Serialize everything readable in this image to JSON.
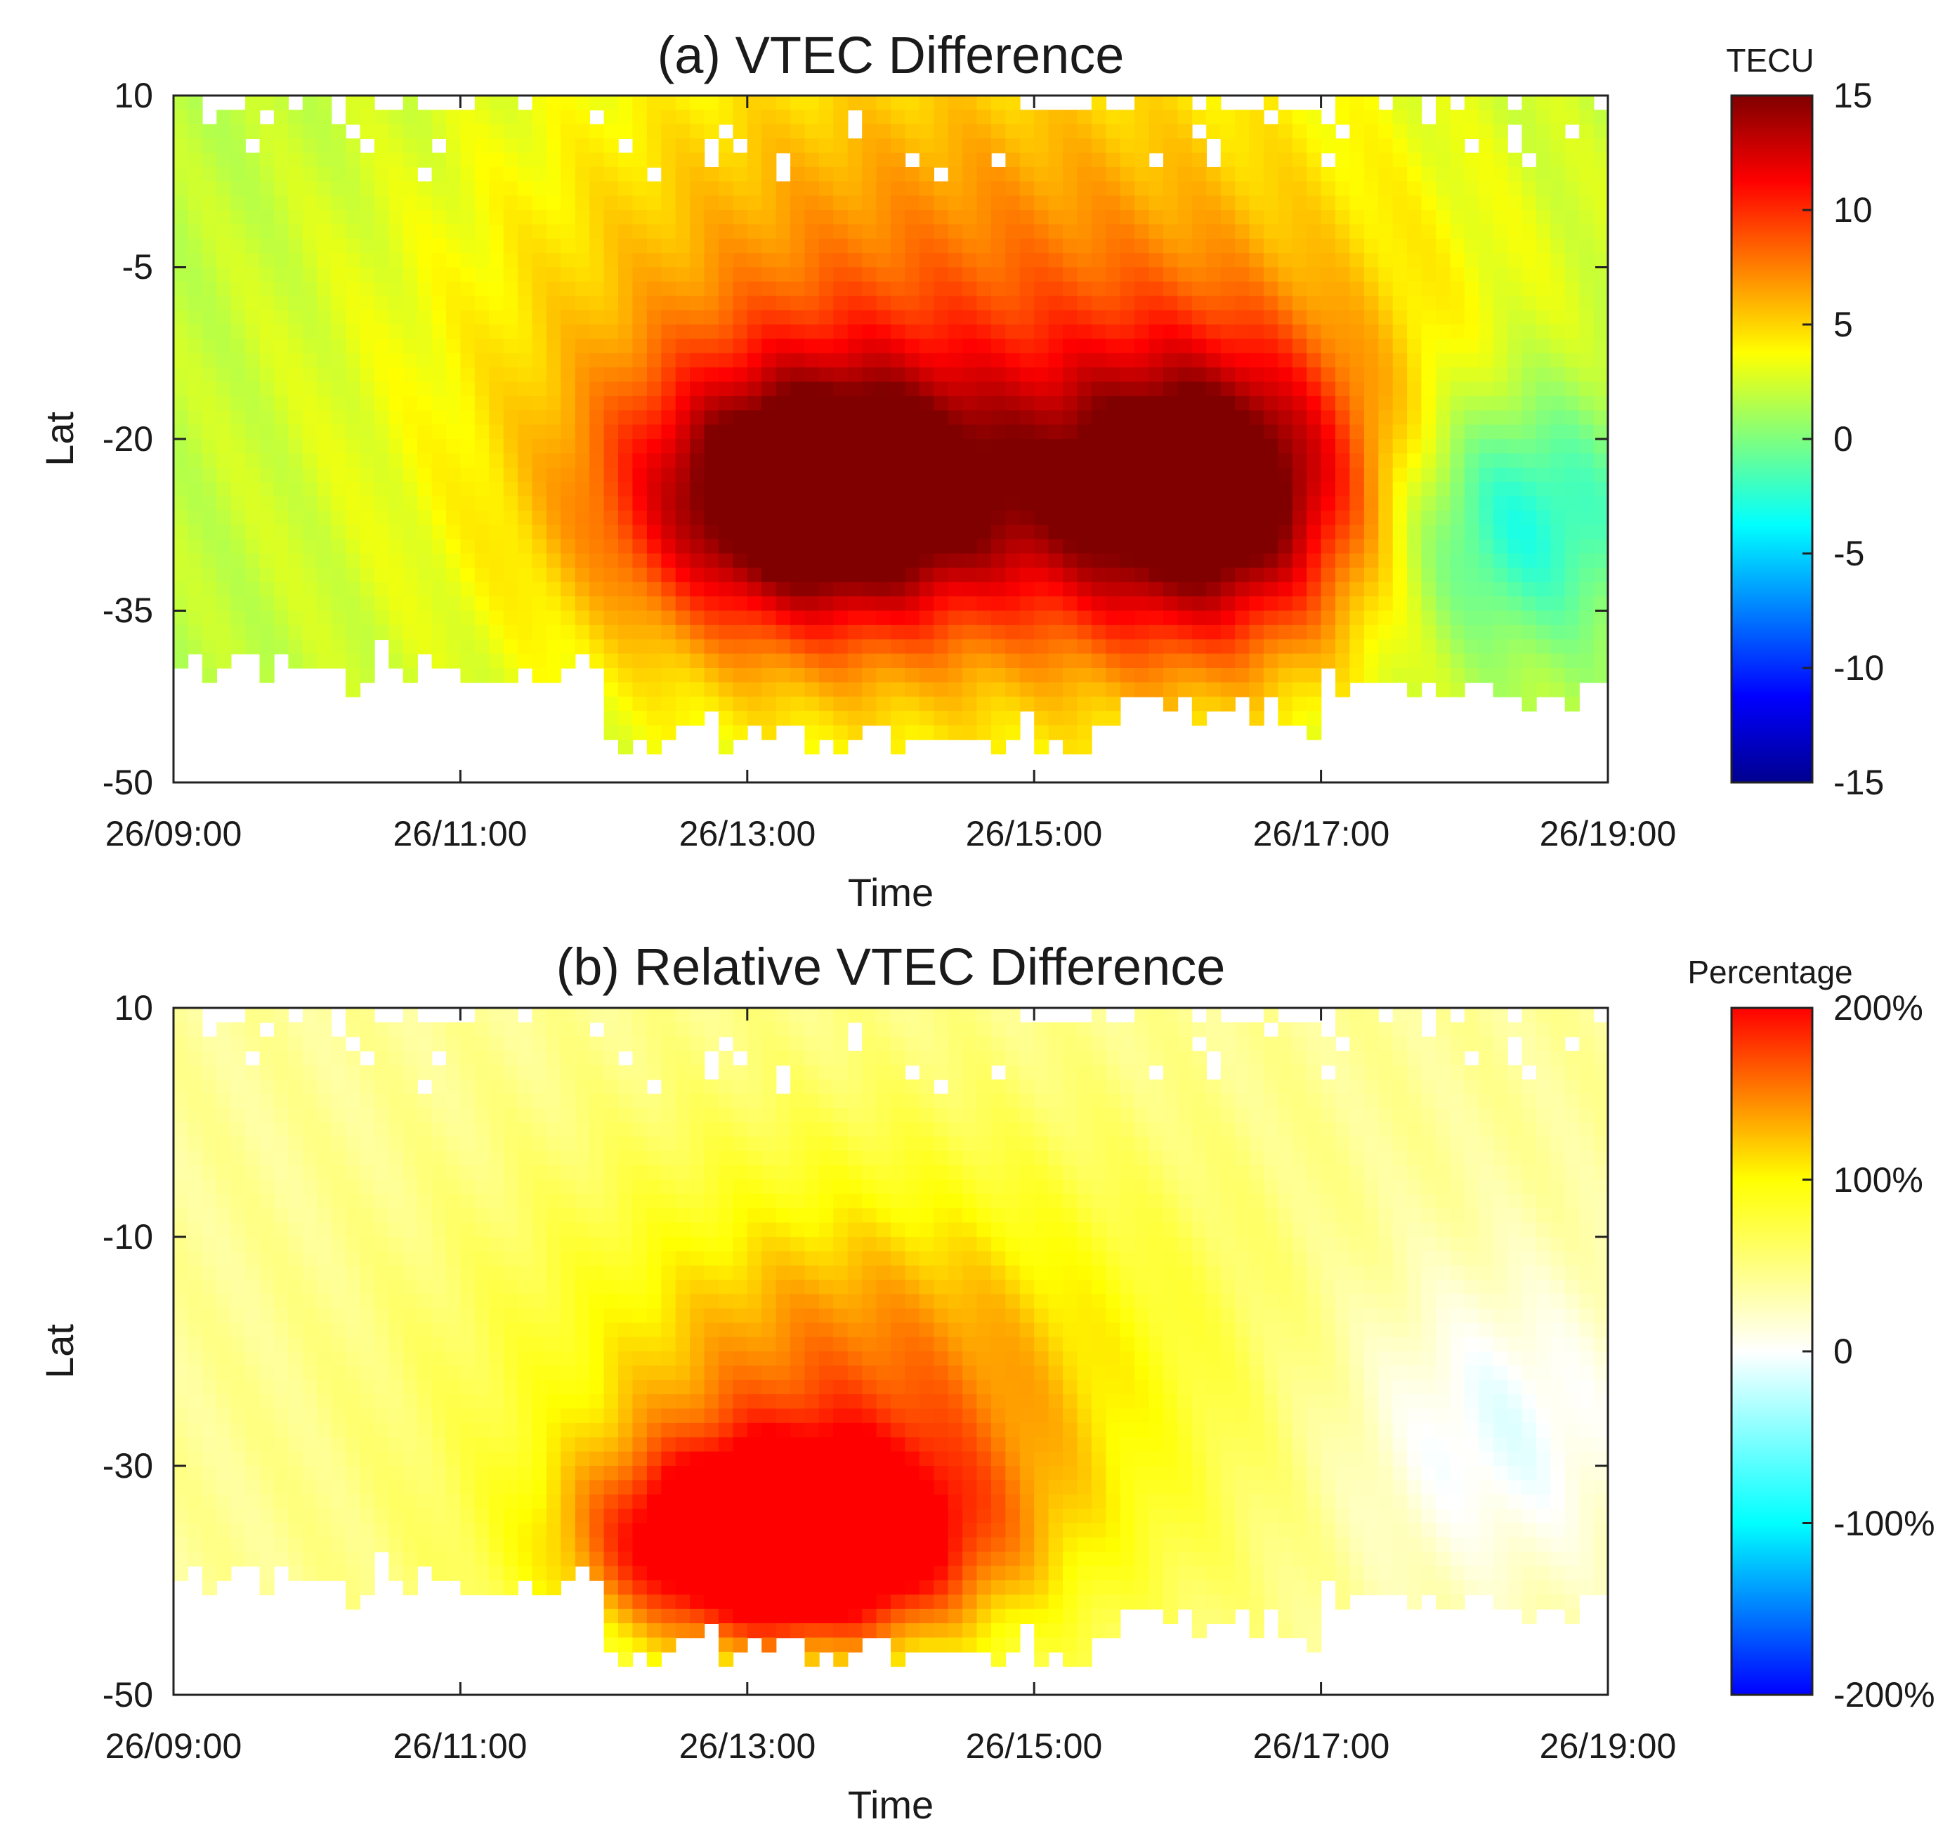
{
  "chart_data": [
    {
      "type": "heatmap",
      "title": "(a) VTEC Difference",
      "xlabel": "Time",
      "ylabel": "Lat",
      "xticks": [
        "26/09:00",
        "26/11:00",
        "26/13:00",
        "26/15:00",
        "26/17:00",
        "26/19:00"
      ],
      "xlim": [
        9,
        19
      ],
      "ylim": [
        -50,
        10
      ],
      "yticks": [
        10,
        -5,
        -20,
        -35,
        -50
      ],
      "colorbar": {
        "label": "TECU",
        "min": -15,
        "max": 15,
        "ticks": [
          15,
          10,
          5,
          0,
          -5,
          -10,
          -15
        ],
        "tick_labels": [
          "15",
          "10",
          "5",
          "0",
          "-5",
          "-10",
          "-15"
        ],
        "colormap": "jet"
      },
      "regions": [
        {
          "name": "background",
          "value": 1.5
        },
        {
          "name": "enhancement-band",
          "value": 7,
          "center": [
            14.5,
            -15
          ],
          "sx": 2.4,
          "sy": 22
        },
        {
          "name": "peak-1",
          "value": 14,
          "center": [
            13.5,
            -25
          ],
          "sx": 0.9,
          "sy": 8
        },
        {
          "name": "peak-2",
          "value": 13,
          "center": [
            16.2,
            -25
          ],
          "sx": 0.8,
          "sy": 9
        },
        {
          "name": "negative-patch",
          "value": -6,
          "center": [
            18.3,
            -27
          ],
          "sx": 0.7,
          "sy": 8
        }
      ]
    },
    {
      "type": "heatmap",
      "title": "(b) Relative VTEC Difference",
      "xlabel": "Time",
      "ylabel": "Lat",
      "xticks": [
        "26/09:00",
        "26/11:00",
        "26/13:00",
        "26/15:00",
        "26/17:00",
        "26/19:00"
      ],
      "xlim": [
        9,
        19
      ],
      "ylim": [
        -50,
        10
      ],
      "yticks": [
        10,
        -10,
        -30,
        -50
      ],
      "colorbar": {
        "label": "Percentage",
        "min": -200,
        "max": 200,
        "ticks": [
          200,
          100,
          0,
          -100,
          -200
        ],
        "tick_labels": [
          "200%",
          "100%",
          "0",
          "-100%",
          "-200%"
        ],
        "colormap": "blue-white-yellow-red"
      },
      "regions": [
        {
          "name": "background",
          "value": 40
        },
        {
          "name": "enhancement-band",
          "value": 120,
          "center": [
            13.8,
            -25
          ],
          "sx": 1.6,
          "sy": 15
        },
        {
          "name": "peak",
          "value": 190,
          "center": [
            13.2,
            -37
          ],
          "sx": 0.9,
          "sy": 6
        },
        {
          "name": "negative-patch",
          "value": -50,
          "center": [
            18.2,
            -27
          ],
          "sx": 0.8,
          "sy": 10
        }
      ]
    }
  ]
}
